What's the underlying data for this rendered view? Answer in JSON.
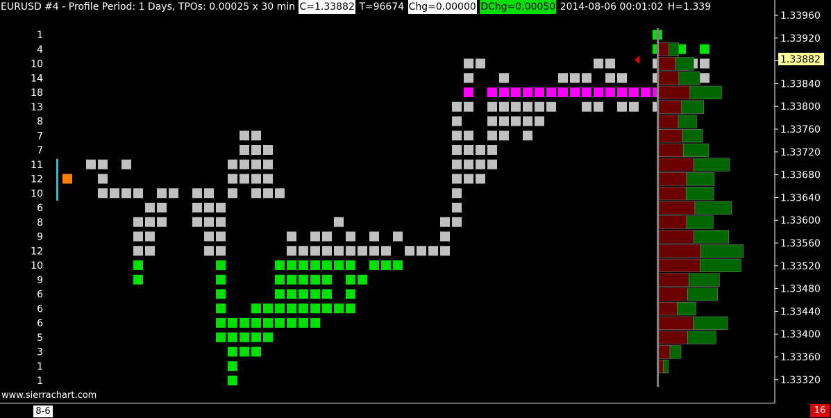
{
  "header": {
    "title": "EURUSD  #4 - Profile Period: 1 Days, TPOs: 0.00025 x 30 min",
    "close": "C=1.33882",
    "trades": "T=96674",
    "change": "Chg=0.00000",
    "day_change": "DChg=0.00050",
    "datetime": "2014-08-06 00:01:02",
    "high": "H=1.339"
  },
  "watermark": "www.sierrachart.com",
  "date_tab": "8-6",
  "counter_badge": "16",
  "colors": {
    "background": "#000000",
    "tpo_gray": "#c0c0c0",
    "tpo_green": "#00e000",
    "tpo_magenta": "#ff00ff",
    "tpo_open": "#ff7f00",
    "initial_balance": "#00d0e0",
    "volume_down": "#6b0000",
    "volume_up": "#006600",
    "price_marker": "#e00000",
    "current_price_bg": "#ffff99"
  },
  "chart_data": {
    "type": "table",
    "price_axis": {
      "tick_labels": [
        "1.33960",
        "1.33920",
        "1.33880",
        "1.33840",
        "1.33800",
        "1.33760",
        "1.33720",
        "1.33680",
        "1.33640",
        "1.33600",
        "1.33560",
        "1.33520",
        "1.33480",
        "1.33440",
        "1.33400",
        "1.33360",
        "1.33320"
      ],
      "current_price": "1.33882"
    },
    "tpo_counts": [
      "1",
      "4",
      "10",
      "14",
      "18",
      "13",
      "8",
      "7",
      "7",
      "11",
      "12",
      "10",
      "6",
      "8",
      "9",
      "12",
      "10",
      "9",
      "6",
      "6",
      "6",
      "5",
      "3",
      "1",
      "1"
    ],
    "tpo_rows": [
      {
        "g": [],
        "gr": [
          [
            50,
            50
          ]
        ],
        "m": []
      },
      {
        "g": [],
        "gr": [
          [
            50,
            52
          ],
          [
            54,
            54
          ]
        ],
        "m": []
      },
      {
        "g": [
          [
            34,
            35
          ],
          [
            45,
            46
          ],
          [
            50,
            54
          ]
        ],
        "gr": [],
        "m": []
      },
      {
        "g": [
          [
            34,
            34
          ],
          [
            37,
            37
          ],
          [
            42,
            44
          ],
          [
            46,
            47
          ],
          [
            50,
            54
          ]
        ],
        "gr": [],
        "m": []
      },
      {
        "g": [],
        "gr": [],
        "m": [
          [
            34,
            34
          ],
          [
            36,
            50
          ]
        ]
      },
      {
        "g": [
          [
            33,
            34
          ],
          [
            36,
            41
          ],
          [
            44,
            45
          ],
          [
            47,
            48
          ],
          [
            50,
            50
          ]
        ],
        "gr": [],
        "m": []
      },
      {
        "g": [
          [
            33,
            33
          ],
          [
            36,
            40
          ]
        ],
        "gr": [],
        "m": []
      },
      {
        "g": [
          [
            15,
            16
          ],
          [
            33,
            34
          ],
          [
            36,
            37
          ],
          [
            39,
            39
          ]
        ],
        "gr": [],
        "m": []
      },
      {
        "g": [
          [
            15,
            17
          ],
          [
            33,
            36
          ]
        ],
        "gr": [],
        "m": []
      },
      {
        "g": [
          [
            2,
            3
          ],
          [
            5,
            5
          ],
          [
            14,
            17
          ],
          [
            33,
            36
          ]
        ],
        "gr": [],
        "m": []
      },
      {
        "g": [
          [
            3,
            3
          ],
          [
            14,
            17
          ],
          [
            33,
            35
          ]
        ],
        "gr": [],
        "m": []
      },
      {
        "g": [
          [
            3,
            6
          ],
          [
            8,
            9
          ],
          [
            11,
            12
          ],
          [
            14,
            14
          ],
          [
            16,
            18
          ],
          [
            33,
            33
          ]
        ],
        "gr": [],
        "m": []
      },
      {
        "g": [
          [
            7,
            8
          ],
          [
            11,
            13
          ],
          [
            33,
            33
          ]
        ],
        "gr": [],
        "m": []
      },
      {
        "g": [
          [
            6,
            8
          ],
          [
            11,
            13
          ],
          [
            23,
            23
          ],
          [
            32,
            33
          ]
        ],
        "gr": [],
        "m": []
      },
      {
        "g": [
          [
            6,
            7
          ],
          [
            12,
            13
          ],
          [
            19,
            19
          ],
          [
            21,
            22
          ],
          [
            24,
            24
          ],
          [
            26,
            26
          ],
          [
            28,
            28
          ],
          [
            32,
            32
          ]
        ],
        "gr": [],
        "m": []
      },
      {
        "g": [
          [
            6,
            7
          ],
          [
            12,
            13
          ],
          [
            19,
            27
          ],
          [
            29,
            32
          ]
        ],
        "gr": [],
        "m": []
      },
      {
        "g": [],
        "gr": [
          [
            6,
            6
          ],
          [
            13,
            13
          ],
          [
            18,
            23
          ],
          [
            24,
            24
          ],
          [
            26,
            28
          ]
        ],
        "m": []
      },
      {
        "g": [],
        "gr": [
          [
            6,
            6
          ],
          [
            13,
            13
          ],
          [
            18,
            22
          ],
          [
            24,
            25
          ]
        ],
        "m": []
      },
      {
        "g": [],
        "gr": [
          [
            13,
            13
          ],
          [
            18,
            22
          ],
          [
            24,
            24
          ]
        ],
        "m": []
      },
      {
        "g": [],
        "gr": [
          [
            13,
            13
          ],
          [
            16,
            21
          ],
          [
            22,
            22
          ],
          [
            23,
            24
          ]
        ],
        "m": []
      },
      {
        "g": [],
        "gr": [
          [
            13,
            20
          ],
          [
            21,
            21
          ]
        ],
        "m": []
      },
      {
        "g": [],
        "gr": [
          [
            13,
            17
          ]
        ],
        "m": []
      },
      {
        "g": [],
        "gr": [
          [
            14,
            16
          ]
        ],
        "m": []
      },
      {
        "g": [],
        "gr": [
          [
            14,
            14
          ]
        ],
        "m": []
      },
      {
        "g": [],
        "gr": [
          [
            14,
            14
          ]
        ],
        "m": []
      }
    ],
    "volume_profile": [
      {
        "down": 0,
        "up": 0
      },
      {
        "down": 18,
        "up": 18
      },
      {
        "down": 30,
        "up": 33
      },
      {
        "down": 36,
        "up": 38
      },
      {
        "down": 56,
        "up": 57
      },
      {
        "down": 41,
        "up": 40
      },
      {
        "down": 35,
        "up": 33
      },
      {
        "down": 42,
        "up": 37
      },
      {
        "down": 44,
        "up": 46
      },
      {
        "down": 63,
        "up": 64
      },
      {
        "down": 50,
        "up": 50
      },
      {
        "down": 49,
        "up": 50
      },
      {
        "down": 65,
        "up": 66
      },
      {
        "down": 50,
        "up": 48
      },
      {
        "down": 63,
        "up": 63
      },
      {
        "down": 75,
        "up": 77
      },
      {
        "down": 74,
        "up": 74
      },
      {
        "down": 54,
        "up": 55
      },
      {
        "down": 52,
        "up": 54
      },
      {
        "down": 33,
        "up": 34
      },
      {
        "down": 62,
        "up": 62
      },
      {
        "down": 52,
        "up": 51
      },
      {
        "down": 20,
        "up": 20
      },
      {
        "down": 8,
        "up": 9
      },
      {
        "down": 0,
        "up": 0
      }
    ]
  }
}
